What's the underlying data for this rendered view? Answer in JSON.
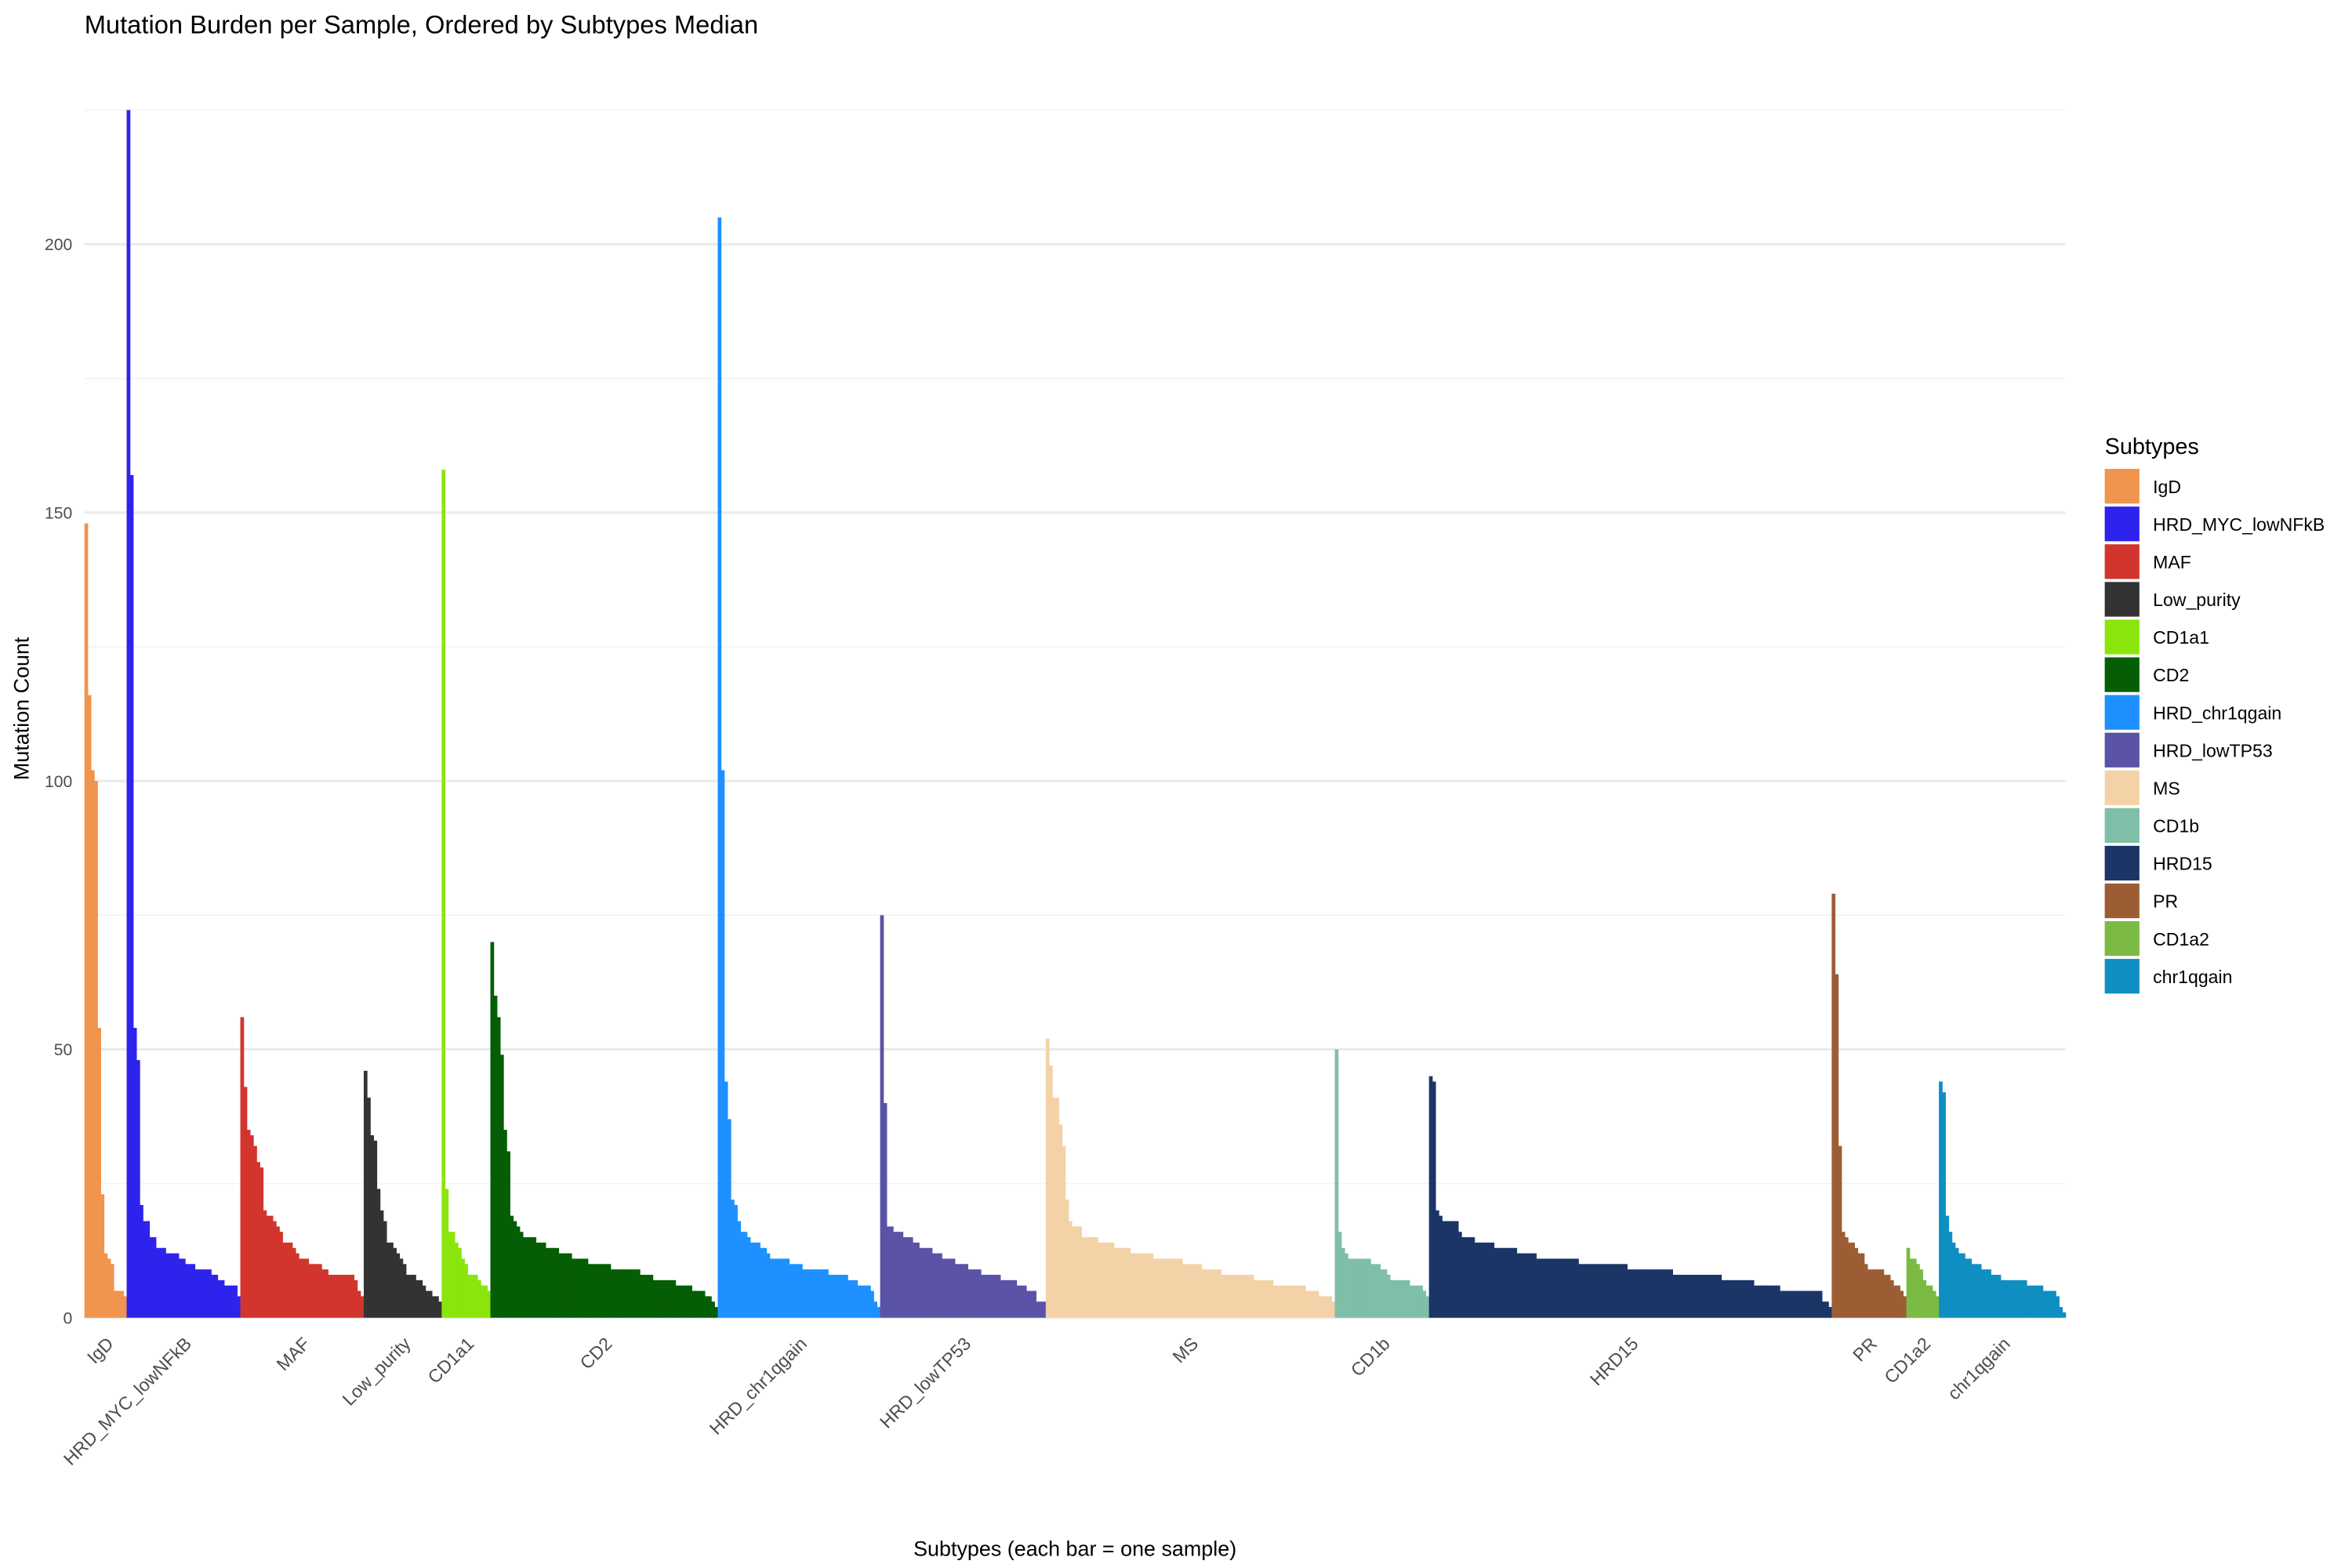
{
  "chart_data": {
    "type": "bar",
    "title": "Mutation Burden per Sample, Ordered by Subtypes Median",
    "xlabel": "Subtypes (each bar = one sample)",
    "ylabel": "Mutation Count",
    "ylim": [
      0,
      225
    ],
    "yticks": [
      0,
      50,
      100,
      150,
      200
    ],
    "grid": true,
    "legend": {
      "title": "Subtypes",
      "position": "right"
    },
    "series": [
      {
        "name": "IgD",
        "color": "#F0944E",
        "values": [
          148,
          116,
          102,
          100,
          54,
          23,
          12,
          11,
          10,
          5,
          5,
          5,
          4
        ]
      },
      {
        "name": "HRD_MYC_lowNFkB",
        "color": "#2E23EC",
        "values": [
          225,
          157,
          54,
          48,
          21,
          18,
          18,
          15,
          15,
          13,
          13,
          13,
          12,
          12,
          12,
          12,
          11,
          11,
          10,
          10,
          10,
          9,
          9,
          9,
          9,
          9,
          8,
          8,
          7,
          7,
          6,
          6,
          6,
          6,
          4
        ]
      },
      {
        "name": "MAF",
        "color": "#D2352D",
        "values": [
          56,
          43,
          35,
          34,
          32,
          29,
          28,
          20,
          19,
          19,
          18,
          17,
          16,
          14,
          14,
          14,
          13,
          12,
          11,
          11,
          11,
          10,
          10,
          10,
          10,
          9,
          9,
          8,
          8,
          8,
          8,
          8,
          8,
          8,
          8,
          7,
          5,
          4
        ]
      },
      {
        "name": "Low_purity",
        "color": "#333333",
        "values": [
          46,
          41,
          34,
          33,
          24,
          20,
          18,
          14,
          14,
          13,
          12,
          11,
          10,
          8,
          8,
          8,
          7,
          7,
          6,
          5,
          5,
          4,
          4,
          3
        ]
      },
      {
        "name": "CD1a1",
        "color": "#8BE50A",
        "values": [
          158,
          24,
          16,
          16,
          14,
          13,
          11,
          10,
          8,
          8,
          8,
          7,
          6,
          6,
          5
        ]
      },
      {
        "name": "CD2",
        "color": "#055E05",
        "values": [
          70,
          60,
          56,
          49,
          35,
          31,
          19,
          18,
          17,
          16,
          15,
          15,
          15,
          15,
          14,
          14,
          14,
          13,
          13,
          13,
          13,
          12,
          12,
          12,
          12,
          11,
          11,
          11,
          11,
          11,
          10,
          10,
          10,
          10,
          10,
          10,
          10,
          9,
          9,
          9,
          9,
          9,
          9,
          9,
          9,
          9,
          8,
          8,
          8,
          8,
          7,
          7,
          7,
          7,
          7,
          7,
          7,
          6,
          6,
          6,
          6,
          6,
          5,
          5,
          5,
          5,
          4,
          4,
          3,
          2
        ]
      },
      {
        "name": "HRD_chr1qgain",
        "color": "#1E90FF",
        "values": [
          205,
          102,
          44,
          37,
          22,
          21,
          18,
          16,
          16,
          15,
          14,
          14,
          14,
          13,
          13,
          12,
          11,
          11,
          11,
          11,
          11,
          11,
          10,
          10,
          10,
          10,
          9,
          9,
          9,
          9,
          9,
          9,
          9,
          9,
          8,
          8,
          8,
          8,
          8,
          8,
          7,
          7,
          7,
          6,
          6,
          6,
          6,
          5,
          3,
          2
        ]
      },
      {
        "name": "HRD_lowTP53",
        "color": "#5A53A6",
        "values": [
          75,
          40,
          17,
          17,
          16,
          16,
          16,
          15,
          15,
          15,
          14,
          14,
          13,
          13,
          13,
          13,
          12,
          12,
          12,
          11,
          11,
          11,
          11,
          10,
          10,
          10,
          10,
          9,
          9,
          9,
          9,
          8,
          8,
          8,
          8,
          8,
          8,
          7,
          7,
          7,
          7,
          7,
          6,
          6,
          6,
          5,
          5,
          5,
          3,
          3,
          3
        ]
      },
      {
        "name": "MS",
        "color": "#F4D2A8",
        "values": [
          52,
          47,
          41,
          41,
          36,
          32,
          22,
          18,
          17,
          17,
          17,
          15,
          15,
          15,
          15,
          15,
          14,
          14,
          14,
          14,
          14,
          13,
          13,
          13,
          13,
          13,
          12,
          12,
          12,
          12,
          12,
          12,
          12,
          11,
          11,
          11,
          11,
          11,
          11,
          11,
          11,
          11,
          10,
          10,
          10,
          10,
          10,
          10,
          9,
          9,
          9,
          9,
          9,
          9,
          8,
          8,
          8,
          8,
          8,
          8,
          8,
          8,
          8,
          8,
          7,
          7,
          7,
          7,
          7,
          7,
          6,
          6,
          6,
          6,
          6,
          6,
          6,
          6,
          6,
          6,
          5,
          5,
          5,
          5,
          4,
          4,
          4,
          4,
          3
        ]
      },
      {
        "name": "CD1b",
        "color": "#7FBFA8",
        "values": [
          50,
          16,
          13,
          12,
          11,
          11,
          11,
          11,
          11,
          11,
          11,
          10,
          10,
          10,
          9,
          9,
          8,
          7,
          7,
          7,
          7,
          7,
          7,
          6,
          6,
          6,
          6,
          5,
          4
        ]
      },
      {
        "name": "HRD15",
        "color": "#1A3566",
        "values": [
          45,
          44,
          20,
          19,
          18,
          18,
          18,
          18,
          18,
          16,
          15,
          15,
          15,
          15,
          14,
          14,
          14,
          14,
          14,
          14,
          13,
          13,
          13,
          13,
          13,
          13,
          13,
          12,
          12,
          12,
          12,
          12,
          12,
          11,
          11,
          11,
          11,
          11,
          11,
          11,
          11,
          11,
          11,
          11,
          11,
          11,
          10,
          10,
          10,
          10,
          10,
          10,
          10,
          10,
          10,
          10,
          10,
          10,
          10,
          10,
          10,
          9,
          9,
          9,
          9,
          9,
          9,
          9,
          9,
          9,
          9,
          9,
          9,
          9,
          9,
          8,
          8,
          8,
          8,
          8,
          8,
          8,
          8,
          8,
          8,
          8,
          8,
          8,
          8,
          8,
          7,
          7,
          7,
          7,
          7,
          7,
          7,
          7,
          7,
          7,
          6,
          6,
          6,
          6,
          6,
          6,
          6,
          6,
          5,
          5,
          5,
          5,
          5,
          5,
          5,
          5,
          5,
          5,
          5,
          5,
          5,
          3,
          3,
          2
        ]
      },
      {
        "name": "PR",
        "color": "#9C5D35",
        "values": [
          79,
          64,
          32,
          16,
          15,
          14,
          14,
          13,
          12,
          12,
          10,
          9,
          9,
          9,
          9,
          9,
          8,
          8,
          7,
          6,
          6,
          5,
          4
        ]
      },
      {
        "name": "CD1a2",
        "color": "#7BBA43",
        "values": [
          13,
          11,
          11,
          10,
          9,
          7,
          6,
          6,
          5,
          4
        ]
      },
      {
        "name": "chr1qgain",
        "color": "#0F8FC1",
        "values": [
          44,
          42,
          19,
          16,
          14,
          13,
          12,
          12,
          11,
          11,
          10,
          10,
          10,
          9,
          9,
          9,
          8,
          8,
          8,
          7,
          7,
          7,
          7,
          7,
          7,
          7,
          7,
          6,
          6,
          6,
          6,
          6,
          5,
          5,
          5,
          5,
          4,
          2,
          1
        ]
      }
    ]
  }
}
